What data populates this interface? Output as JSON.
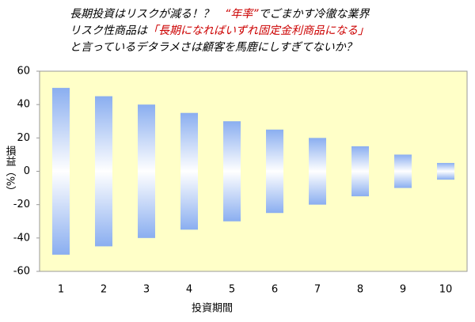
{
  "chart_data": {
    "type": "floating-bar",
    "title_lines": [
      [
        {
          "text": "長期投資はリスクが減る！？　",
          "color": "#000000"
        },
        {
          "text": "“年率”",
          "color": "#cc0000"
        },
        {
          "text": "でごまかす冷徹な業界",
          "color": "#000000"
        }
      ],
      [
        {
          "text": "リスク性商品は",
          "color": "#000000"
        },
        {
          "text": "「長期になればいずれ固定金利商品になる」",
          "color": "#cc0000"
        }
      ],
      [
        {
          "text": "と言っているデタラメさは顧客を馬鹿にしすぎてないか？",
          "color": "#000000"
        }
      ]
    ],
    "x_label": "投資期間",
    "y_label": "損益（%）",
    "categories": [
      "1",
      "2",
      "3",
      "4",
      "5",
      "6",
      "7",
      "8",
      "9",
      "10"
    ],
    "low": [
      -50,
      -45,
      -40,
      -35,
      -30,
      -25,
      -20,
      -15,
      -10,
      -5
    ],
    "high": [
      50,
      45,
      40,
      35,
      30,
      25,
      20,
      15,
      10,
      5
    ],
    "color": "#8aaef0",
    "plot_background": "#ffffc8",
    "ylim": [
      -60,
      60
    ],
    "yticks": [
      -60,
      -40,
      -20,
      0,
      20,
      40,
      60
    ],
    "grid": false
  }
}
